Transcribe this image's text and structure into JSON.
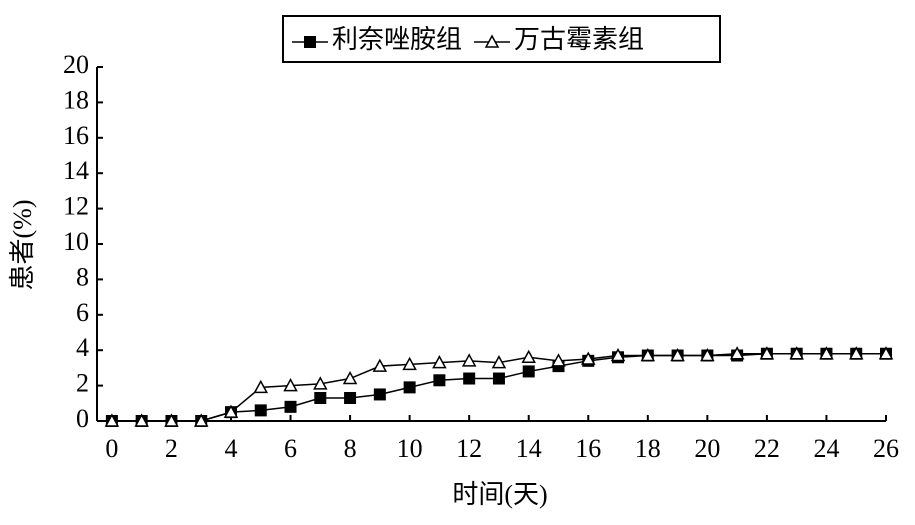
{
  "chart_data": {
    "type": "line",
    "legend_position": "top",
    "x_label": "时间(天)",
    "y_label": "患者(%)",
    "x": [
      0,
      1,
      2,
      3,
      4,
      5,
      6,
      7,
      8,
      9,
      10,
      11,
      12,
      13,
      14,
      15,
      16,
      17,
      18,
      19,
      20,
      21,
      22,
      23,
      24,
      25,
      26
    ],
    "series": [
      {
        "name": "利奈唑胺组",
        "color": "#000000",
        "marker": "square",
        "values": [
          0,
          0,
          0,
          0,
          0.5,
          0.6,
          0.8,
          1.3,
          1.3,
          1.5,
          1.9,
          2.3,
          2.4,
          2.4,
          2.8,
          3.1,
          3.4,
          3.6,
          3.7,
          3.7,
          3.7,
          3.7,
          3.8,
          3.8,
          3.8,
          3.8,
          3.8
        ]
      },
      {
        "name": "万古霉素组",
        "color": "#000000",
        "marker": "triangle",
        "values": [
          0,
          0,
          0,
          0,
          0.5,
          1.9,
          2.0,
          2.1,
          2.4,
          3.1,
          3.2,
          3.3,
          3.4,
          3.3,
          3.6,
          3.4,
          3.5,
          3.7,
          3.7,
          3.7,
          3.7,
          3.8,
          3.8,
          3.8,
          3.8,
          3.8,
          3.8
        ]
      }
    ],
    "xlim": [
      -0.5,
      26
    ],
    "xticks": [
      0,
      2,
      4,
      6,
      8,
      10,
      12,
      14,
      16,
      18,
      20,
      22,
      24,
      26
    ],
    "ylim": [
      0,
      20
    ],
    "yticks": [
      0,
      2,
      4,
      6,
      8,
      10,
      12,
      14,
      16,
      18,
      20
    ]
  }
}
